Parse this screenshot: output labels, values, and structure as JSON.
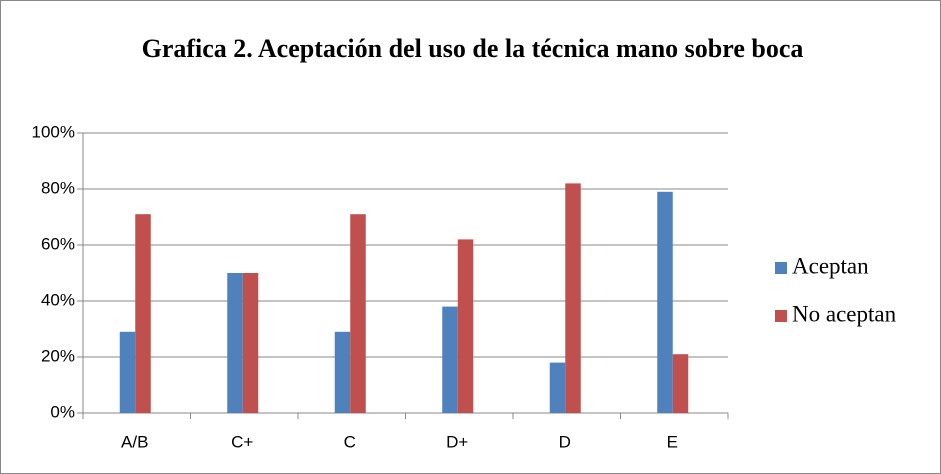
{
  "chart_data": {
    "type": "bar",
    "title": "Grafica 2. Aceptación del uso de la técnica mano sobre boca",
    "categories": [
      "A/B",
      "C+",
      "C",
      "D+",
      "D",
      "E"
    ],
    "series": [
      {
        "name": "Aceptan",
        "color": "#4f81bd",
        "values": [
          29,
          50,
          29,
          38,
          18,
          79
        ]
      },
      {
        "name": "No aceptan",
        "color": "#c0504d",
        "values": [
          71,
          50,
          71,
          62,
          82,
          21
        ]
      }
    ],
    "ylim": [
      0,
      100
    ],
    "yticks": [
      {
        "value": 0,
        "label": "0%"
      },
      {
        "value": 20,
        "label": "20%"
      },
      {
        "value": 40,
        "label": "40%"
      },
      {
        "value": 60,
        "label": "60%"
      },
      {
        "value": 80,
        "label": "80%"
      },
      {
        "value": 100,
        "label": "100%"
      }
    ],
    "grid": true,
    "legend": "right"
  }
}
